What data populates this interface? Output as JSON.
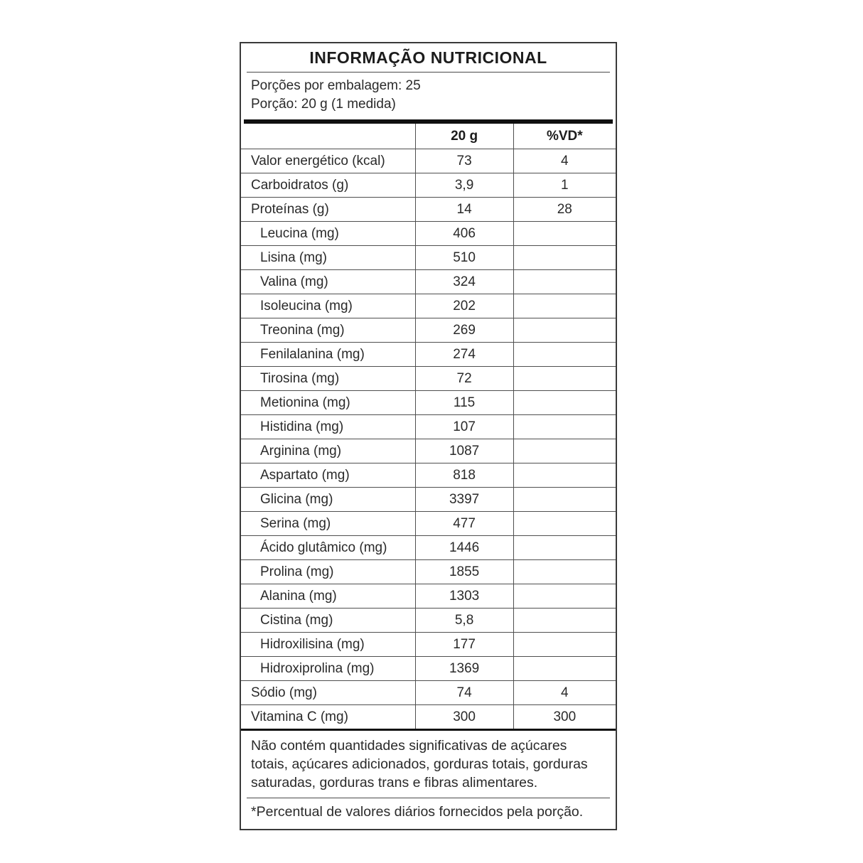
{
  "title": "INFORMAÇÃO NUTRICIONAL",
  "serving": {
    "servings_per_package": "Porções por embalagem: 25",
    "serving_size": "Porção: 20 g (1 medida)"
  },
  "table": {
    "columns": [
      "",
      "20 g",
      "%VD*"
    ],
    "rows": [
      {
        "label": "Valor energético (kcal)",
        "amount": "73",
        "dv": "4",
        "indent": false
      },
      {
        "label": "Carboidratos (g)",
        "amount": "3,9",
        "dv": "1",
        "indent": false
      },
      {
        "label": "Proteínas (g)",
        "amount": "14",
        "dv": "28",
        "indent": false
      },
      {
        "label": "Leucina (mg)",
        "amount": "406",
        "dv": "",
        "indent": true
      },
      {
        "label": "Lisina (mg)",
        "amount": "510",
        "dv": "",
        "indent": true
      },
      {
        "label": "Valina (mg)",
        "amount": "324",
        "dv": "",
        "indent": true
      },
      {
        "label": "Isoleucina (mg)",
        "amount": "202",
        "dv": "",
        "indent": true
      },
      {
        "label": "Treonina (mg)",
        "amount": "269",
        "dv": "",
        "indent": true
      },
      {
        "label": "Fenilalanina (mg)",
        "amount": "274",
        "dv": "",
        "indent": true
      },
      {
        "label": "Tirosina (mg)",
        "amount": "72",
        "dv": "",
        "indent": true
      },
      {
        "label": "Metionina (mg)",
        "amount": "115",
        "dv": "",
        "indent": true
      },
      {
        "label": "Histidina (mg)",
        "amount": "107",
        "dv": "",
        "indent": true
      },
      {
        "label": "Arginina (mg)",
        "amount": "1087",
        "dv": "",
        "indent": true
      },
      {
        "label": "Aspartato (mg)",
        "amount": "818",
        "dv": "",
        "indent": true
      },
      {
        "label": "Glicina (mg)",
        "amount": "3397",
        "dv": "",
        "indent": true
      },
      {
        "label": "Serina (mg)",
        "amount": "477",
        "dv": "",
        "indent": true
      },
      {
        "label": "Ácido glutâmico (mg)",
        "amount": "1446",
        "dv": "",
        "indent": true
      },
      {
        "label": "Prolina (mg)",
        "amount": "1855",
        "dv": "",
        "indent": true
      },
      {
        "label": "Alanina (mg)",
        "amount": "1303",
        "dv": "",
        "indent": true
      },
      {
        "label": "Cistina (mg)",
        "amount": "5,8",
        "dv": "",
        "indent": true
      },
      {
        "label": "Hidroxilisina (mg)",
        "amount": "177",
        "dv": "",
        "indent": true
      },
      {
        "label": "Hidroxiprolina (mg)",
        "amount": "1369",
        "dv": "",
        "indent": true
      },
      {
        "label": "Sódio (mg)",
        "amount": "74",
        "dv": "4",
        "indent": false
      },
      {
        "label": "Vitamina C (mg)",
        "amount": "300",
        "dv": "300",
        "indent": false
      }
    ]
  },
  "notes": {
    "no_significant_amounts": "Não contém quantidades significativas de açúcares totais, açúcares adicionados, gorduras totais, gorduras saturadas, gorduras trans e fibras alimentares.",
    "dv_footnote": "*Percentual de valores diários fornecidos pela porção."
  },
  "colors": {
    "outer_border": "#3a3a3a",
    "thin_line": "#4f4f4f",
    "heavy_bar": "#101010",
    "text": "#2a2a2a",
    "background": "#ffffff"
  }
}
